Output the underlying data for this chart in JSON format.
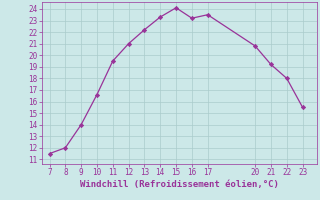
{
  "x": [
    7,
    8,
    9,
    10,
    11,
    12,
    13,
    14,
    15,
    16,
    17,
    20,
    21,
    22,
    23
  ],
  "y": [
    11.5,
    12.0,
    14.0,
    16.6,
    19.5,
    21.0,
    22.2,
    23.3,
    24.1,
    23.2,
    23.5,
    20.8,
    19.2,
    18.0,
    15.5
  ],
  "line_color": "#993399",
  "marker_color": "#993399",
  "bg_color": "#cce8e8",
  "grid_color": "#aacccc",
  "xlabel": "Windchill (Refroidissement éolien,°C)",
  "xlabel_color": "#993399",
  "xlim": [
    6.5,
    23.9
  ],
  "ylim": [
    10.6,
    24.6
  ],
  "xticks": [
    7,
    8,
    9,
    10,
    11,
    12,
    13,
    14,
    15,
    16,
    17,
    20,
    21,
    22,
    23
  ],
  "yticks": [
    11,
    12,
    13,
    14,
    15,
    16,
    17,
    18,
    19,
    20,
    21,
    22,
    23,
    24
  ],
  "tick_color": "#993399",
  "tick_fontsize": 5.5,
  "xlabel_fontsize": 6.5
}
